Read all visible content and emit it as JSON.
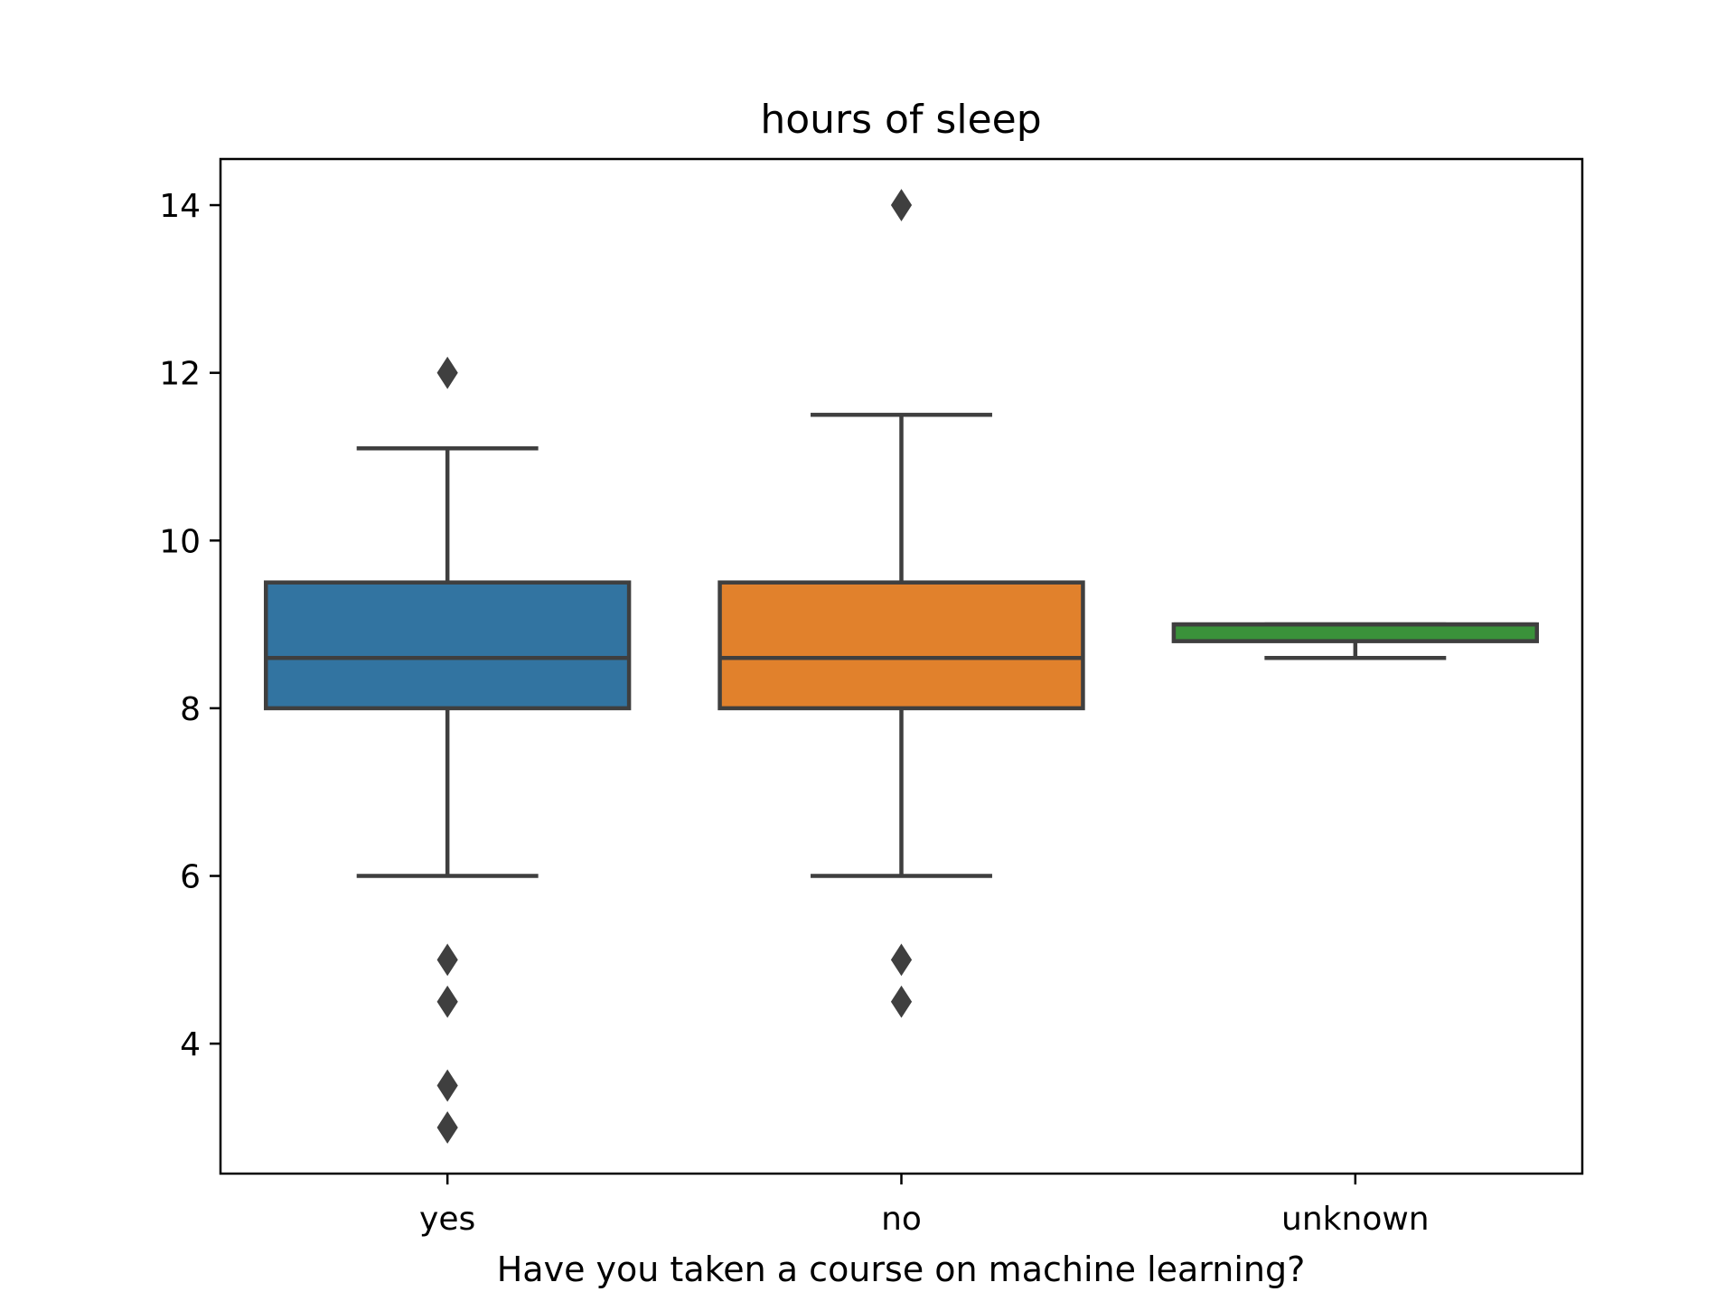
{
  "chart_data": {
    "type": "box",
    "title": "hours of sleep",
    "xlabel": "Have you taken a course on machine learning?",
    "ylabel": "",
    "ylim": [
      2.45,
      14.55
    ],
    "yticks": [
      4,
      6,
      8,
      10,
      12,
      14
    ],
    "ytick_labels": [
      "4",
      "6",
      "8",
      "10",
      "12",
      "14"
    ],
    "categories": [
      "yes",
      "no",
      "unknown"
    ],
    "grid": false,
    "legend": "none",
    "boxes": [
      {
        "category": "yes",
        "color": "#3274a1",
        "whisker_low": 6,
        "q1": 8,
        "median": 8.6,
        "q3": 9.5,
        "whisker_high": 11.1,
        "outliers": [
          12,
          5,
          4.5,
          3.5,
          3
        ]
      },
      {
        "category": "no",
        "color": "#e1812c",
        "whisker_low": 6,
        "q1": 8,
        "median": 8.6,
        "q3": 9.5,
        "whisker_high": 11.5,
        "outliers": [
          14,
          5,
          4.5
        ]
      },
      {
        "category": "unknown",
        "color": "#3a923a",
        "whisker_low": 8.6,
        "q1": 8.8,
        "median": 9.0,
        "q3": 9.0,
        "whisker_high": 9.0,
        "outliers": []
      }
    ],
    "line_color": "#3f3f3f"
  }
}
